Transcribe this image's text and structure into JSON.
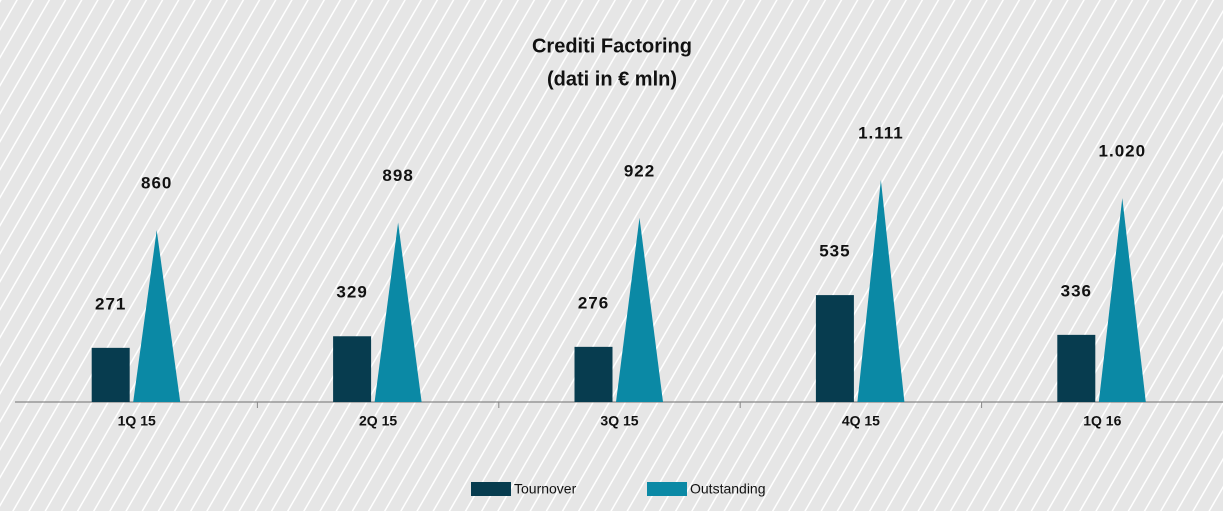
{
  "chart_data": {
    "type": "bar",
    "title": "Crediti Factoring",
    "subtitle": "(dati in € mln)",
    "categories": [
      "1Q 15",
      "2Q 15",
      "3Q 15",
      "4Q 15",
      "1Q 16"
    ],
    "series": [
      {
        "name": "Tournover",
        "color": "#073c4f",
        "shape": "bar",
        "values": [
          271,
          329,
          276,
          535,
          336
        ]
      },
      {
        "name": "Outstanding",
        "color": "#0b89a5",
        "shape": "triangle",
        "values": [
          860,
          898,
          922,
          1111,
          1020
        ],
        "value_labels": [
          "860",
          "898",
          "922",
          "1.111",
          "1.020"
        ]
      }
    ],
    "legend": "bottom"
  }
}
